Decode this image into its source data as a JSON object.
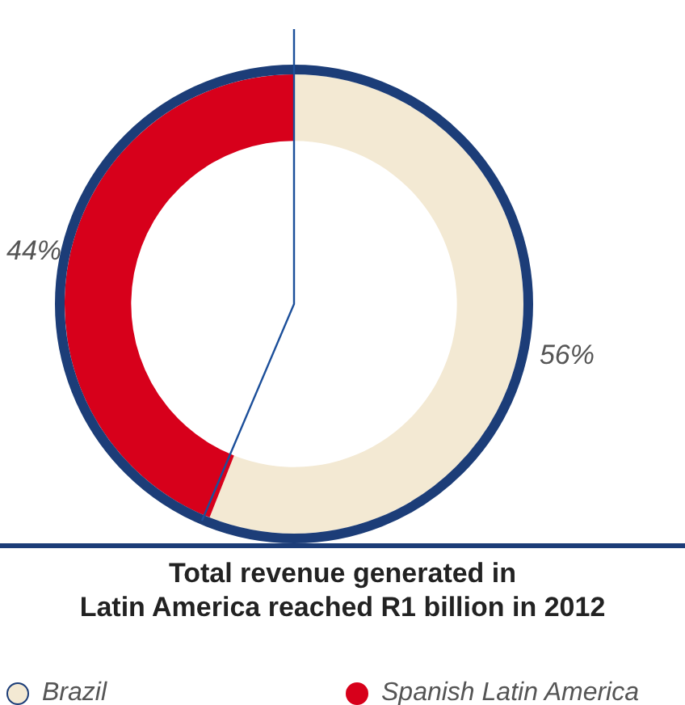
{
  "chart_data": {
    "type": "donut",
    "title": "Total revenue generated in\nLatin America reached R1 billion in 2012",
    "categories": [
      "Brazil",
      "Spanish Latin America"
    ],
    "values": [
      56,
      44
    ],
    "colors": [
      "#f3e9d3",
      "#d7001b"
    ],
    "value_labels": [
      "56%",
      "44%"
    ],
    "legend": "bottom"
  }
}
